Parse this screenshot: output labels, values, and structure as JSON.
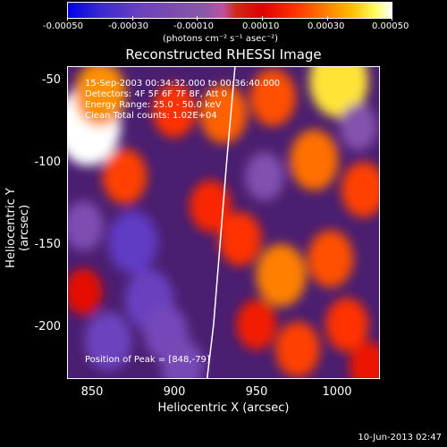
{
  "colorbar": {
    "ticks": [
      "-0.00050",
      "-0.00030",
      "-0.00010",
      "0.00010",
      "0.00030",
      "0.00050"
    ],
    "unit": "(photons cm⁻² s⁻¹ asec⁻²)"
  },
  "title": "Reconstructed RHESSI Image",
  "info": {
    "time": "15-Sep-2003 00:34:32.000 to 00:36:40.000",
    "detectors": "Detectors: 4F 5F 6F 7F 8F, Att 0",
    "energy": "Energy Range: 25.0 - 50.0 keV",
    "method": "Clean     Total counts: 1.02E+04",
    "peak": "Position of Peak = [848,-79]"
  },
  "axes": {
    "xlabel": "Heliocentric X (arcsec)",
    "ylabel": "Heliocentric Y (arcsec)",
    "xticks": [
      "850",
      "900",
      "950",
      "1000"
    ],
    "yticks": [
      "-50",
      "-100",
      "-150",
      "-200"
    ]
  },
  "footer_date": "10-Jun-2013 02:47",
  "chart_data": {
    "type": "heatmap",
    "title": "Reconstructed RHESSI Image",
    "xlabel": "Heliocentric X (arcsec)",
    "ylabel": "Heliocentric Y (arcsec)",
    "xlim": [
      835,
      1025
    ],
    "ylim": [
      -233,
      -43
    ],
    "color_range": [
      -0.0005,
      0.0005
    ],
    "colorbar_unit": "(photons cm⁻² s⁻¹ asec⁻²)",
    "peak": {
      "x": 848,
      "y": -79
    },
    "limb_curve": [
      [
        937,
        -43
      ],
      [
        932,
        -100
      ],
      [
        928,
        -150
      ],
      [
        924,
        -200
      ],
      [
        920,
        -233
      ]
    ],
    "blobs": [
      {
        "x": 848,
        "y": -79,
        "v": 0.0005
      },
      {
        "x": 855,
        "y": -60,
        "v": 0.00032
      },
      {
        "x": 870,
        "y": -110,
        "v": 0.00022
      },
      {
        "x": 900,
        "y": -70,
        "v": 0.0002
      },
      {
        "x": 930,
        "y": -72,
        "v": 0.00026
      },
      {
        "x": 960,
        "y": -62,
        "v": 0.00024
      },
      {
        "x": 1000,
        "y": -52,
        "v": 0.00042
      },
      {
        "x": 985,
        "y": -100,
        "v": 0.00028
      },
      {
        "x": 1015,
        "y": -118,
        "v": 0.00022
      },
      {
        "x": 922,
        "y": -128,
        "v": 0.00018
      },
      {
        "x": 940,
        "y": -148,
        "v": 0.0002
      },
      {
        "x": 965,
        "y": -170,
        "v": 0.0003
      },
      {
        "x": 995,
        "y": -160,
        "v": 0.00024
      },
      {
        "x": 1005,
        "y": -200,
        "v": 0.0002
      },
      {
        "x": 975,
        "y": -215,
        "v": 0.00022
      },
      {
        "x": 950,
        "y": -200,
        "v": 0.00016
      },
      {
        "x": 1018,
        "y": -225,
        "v": 0.00014
      },
      {
        "x": 845,
        "y": -180,
        "v": 0.00012
      },
      {
        "x": 875,
        "y": -150,
        "v": -0.0003
      },
      {
        "x": 885,
        "y": -185,
        "v": -0.00028
      },
      {
        "x": 860,
        "y": -210,
        "v": -0.00026
      },
      {
        "x": 895,
        "y": -205,
        "v": -0.00022
      },
      {
        "x": 905,
        "y": -225,
        "v": -0.0002
      },
      {
        "x": 845,
        "y": -140,
        "v": -0.00016
      },
      {
        "x": 955,
        "y": -110,
        "v": -0.00014
      },
      {
        "x": 1012,
        "y": -80,
        "v": -0.00012
      }
    ]
  }
}
